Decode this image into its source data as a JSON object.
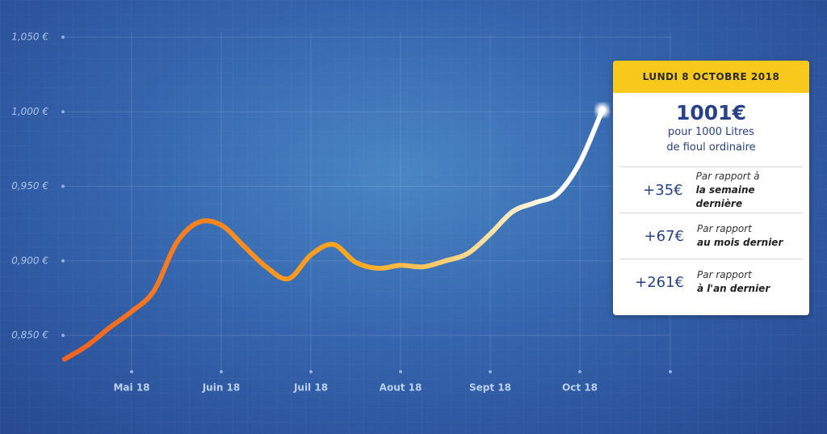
{
  "chart_data": {
    "type": "line",
    "categories": [
      null,
      null,
      null,
      "Mai 18",
      null,
      null,
      null,
      "Juin 18",
      null,
      null,
      null,
      "Juil 18",
      null,
      null,
      null,
      "Aout 18",
      null,
      null,
      null,
      "Sept 18",
      null,
      null,
      null,
      "Oct 18",
      null
    ],
    "series": [
      {
        "color": "#f4621f",
        "values": [
          0.834,
          0.843,
          0.855,
          0.866,
          0.88,
          0.912,
          0.926,
          0.924,
          0.91,
          0.896,
          0.888,
          0.904,
          0.911,
          0.899,
          0.895,
          0.897,
          0.896,
          0.9,
          0.905,
          0.918,
          0.933,
          0.939,
          0.945,
          0.966,
          1.001
        ]
      }
    ],
    "ylim": [
      0.85,
      1.05
    ],
    "yticks": [
      {
        "value": 0.85,
        "label": "0,850 €"
      },
      {
        "value": 0.9,
        "label": "0,900 €"
      },
      {
        "value": 0.95,
        "label": "0,950 €"
      },
      {
        "value": 1.0,
        "label": "1,000 €"
      },
      {
        "value": 1.05,
        "label": "1,050 €"
      }
    ],
    "grid": true
  },
  "panel": {
    "date": "LUNDI 8 OCTOBRE 2018",
    "price": "1001€",
    "line1": "pour 1000 Litres",
    "line2": "de fioul ordinaire",
    "rows": [
      {
        "change": "+35€",
        "label1": "Par rapport à",
        "label2": "la  semaine dernière"
      },
      {
        "change": "+67€",
        "label1": "Par rapport",
        "label2": "au mois dernier"
      },
      {
        "change": "+261€",
        "label1": "Par rapport",
        "label2": "à l'an dernier"
      }
    ]
  }
}
